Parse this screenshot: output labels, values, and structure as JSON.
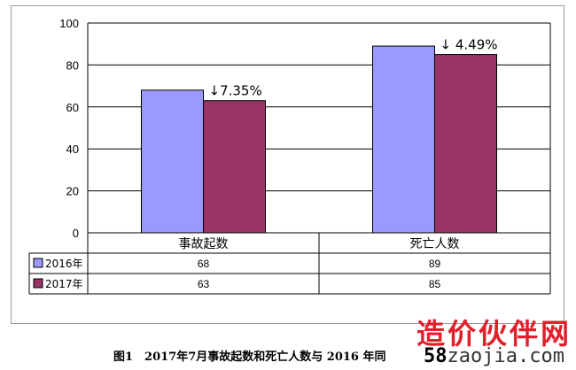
{
  "chart_data": {
    "type": "bar",
    "categories": [
      "事故起数",
      "死亡人数"
    ],
    "series": [
      {
        "name": "2016年",
        "values": [
          68,
          89
        ],
        "color": "#9999ff"
      },
      {
        "name": "2017年",
        "values": [
          63,
          85
        ],
        "color": "#993366"
      }
    ],
    "ylim": [
      0,
      100
    ],
    "yticks": [
      "0",
      "20",
      "40",
      "60",
      "80",
      "100"
    ],
    "annotations": [
      "↓7.35%",
      "↓ 4.49%"
    ],
    "grid": true,
    "legend": "data-table",
    "data_table": [
      {
        "name": "2016年",
        "values": [
          "68",
          "89"
        ]
      },
      {
        "name": "2017年",
        "values": [
          "63",
          "85"
        ]
      }
    ]
  },
  "caption": "图1　2017年7月事故起数和死亡人数与 2016 年同",
  "watermark": {
    "brand": "造价伙伴网",
    "url_num": "58",
    "url_rest": "zaojia.com"
  }
}
